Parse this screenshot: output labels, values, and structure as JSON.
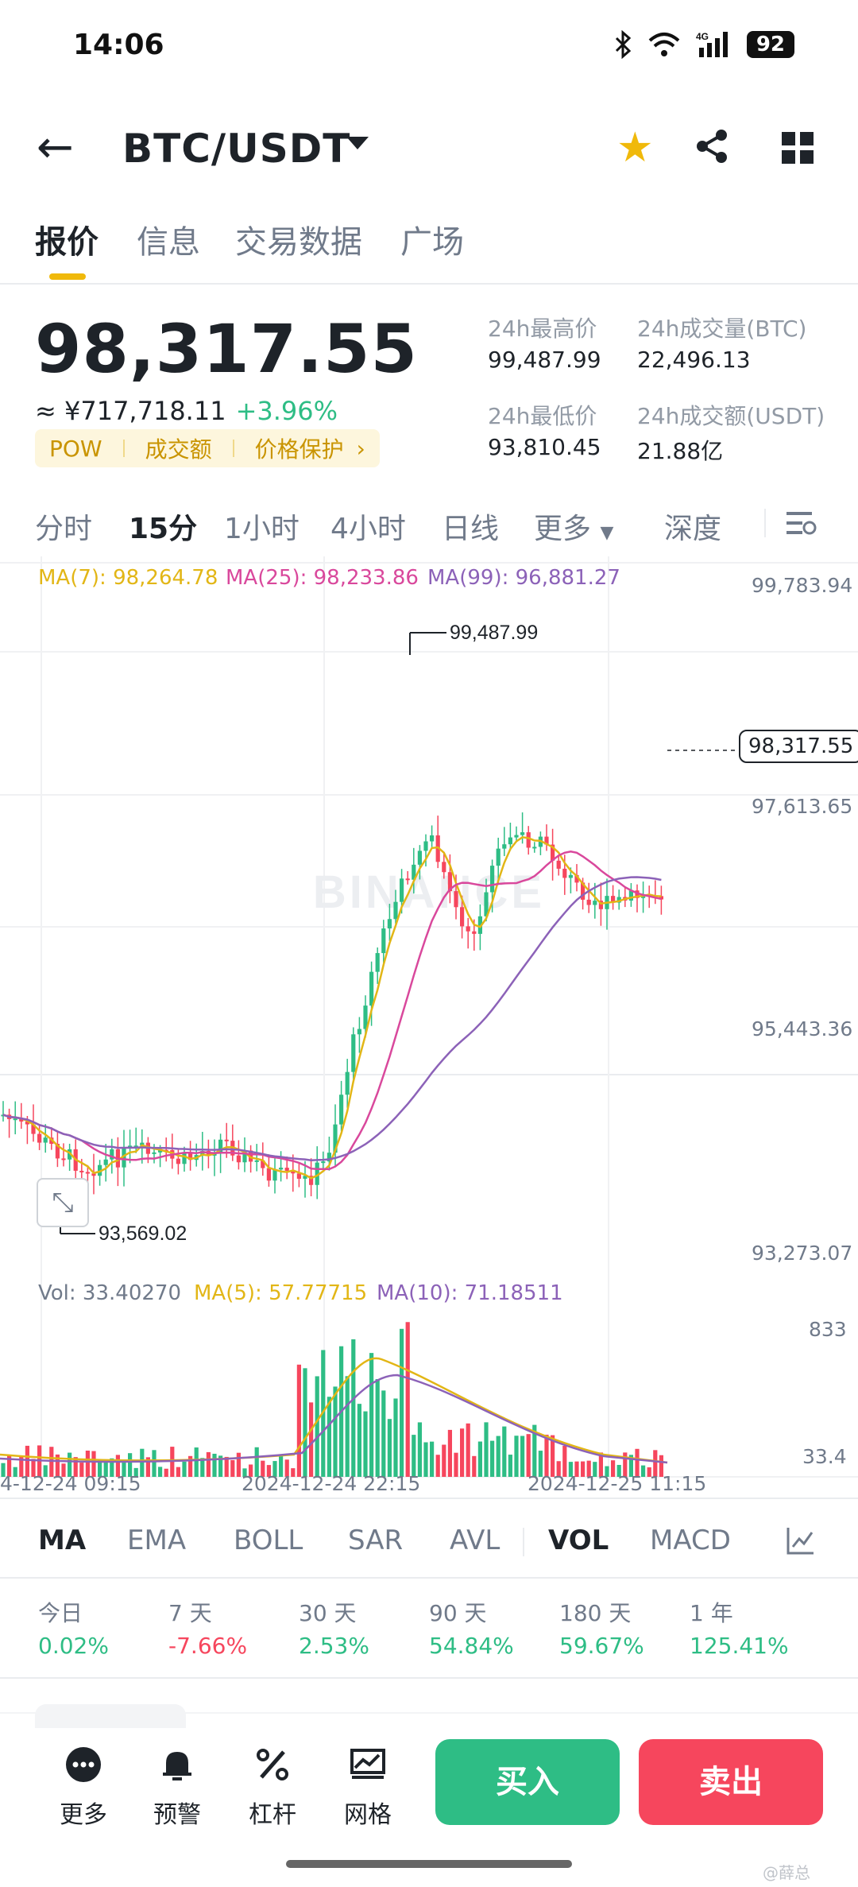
{
  "status_bar": {
    "time": "14:06",
    "battery": "92",
    "network": "4G"
  },
  "header": {
    "pair": "BTC/USDT",
    "icons": [
      "back-arrow-icon",
      "caret-down-icon",
      "star-icon",
      "share-icon",
      "grid-icon"
    ]
  },
  "tabs": [
    "报价",
    "信息",
    "交易数据",
    "广场"
  ],
  "price": {
    "last": "98,317.55",
    "cny": "≈ ¥717,718.11",
    "change_pct": "+3.96%",
    "tags": [
      "POW",
      "成交额",
      "价格保护"
    ],
    "tag_arrow": "›",
    "stats": {
      "high_label": "24h最高价",
      "high_value": "99,487.99",
      "vol_btc_label": "24h成交量(BTC)",
      "vol_btc_value": "22,496.13",
      "low_label": "24h最低价",
      "low_value": "93,810.45",
      "vol_usdt_label": "24h成交额(USDT)",
      "vol_usdt_value": "21.88亿"
    }
  },
  "intervals": [
    "分时",
    "15分",
    "1小时",
    "4小时",
    "日线",
    "更多",
    "深度"
  ],
  "active_interval": "15分",
  "chart_legend": {
    "ma7": "MA(7): 98,264.78",
    "ma25": "MA(25): 98,233.86",
    "ma99": "MA(99): 96,881.27"
  },
  "chart_axis": {
    "y_ticks": [
      "99,783.94",
      "97,613.65",
      "95,443.36",
      "93,273.07"
    ],
    "high_marker": "99,487.99",
    "low_marker": "93,569.02",
    "last_price_tag": "98,317.55",
    "watermark": "BINANCE"
  },
  "volume_legend": {
    "vol": "Vol: 33.40270",
    "ma5": "MA(5): 57.77715",
    "ma10": "MA(10): 71.18511",
    "y_top": "833",
    "y_bottom": "33.4"
  },
  "time_axis": [
    "4-12-24 09:15",
    "2024-12-24 22:15",
    "2024-12-25 11:15"
  ],
  "colors": {
    "up": "#2ebd85",
    "down": "#f6465d",
    "ma7": "#e2b616",
    "ma25": "#d9489c",
    "ma99": "#8c62b8",
    "accent": "#f0b90b"
  },
  "indicator_tabs": [
    "MA",
    "EMA",
    "BOLL",
    "SAR",
    "AVL",
    "VOL",
    "MACD"
  ],
  "performance": [
    {
      "label": "今日",
      "value": "0.02%",
      "dir": "up"
    },
    {
      "label": "7 天",
      "value": "-7.66%",
      "dir": "down"
    },
    {
      "label": "30 天",
      "value": "2.53%",
      "dir": "up"
    },
    {
      "label": "90 天",
      "value": "54.84%",
      "dir": "up"
    },
    {
      "label": "180 天",
      "value": "59.67%",
      "dir": "up"
    },
    {
      "label": "1 年",
      "value": "125.41%",
      "dir": "up"
    }
  ],
  "bottom_bar": {
    "more": "更多",
    "alert": "预警",
    "leverage": "杠杆",
    "grid": "网格",
    "buy": "买入",
    "sell": "卖出"
  },
  "corner_watermark": "@薛总"
}
